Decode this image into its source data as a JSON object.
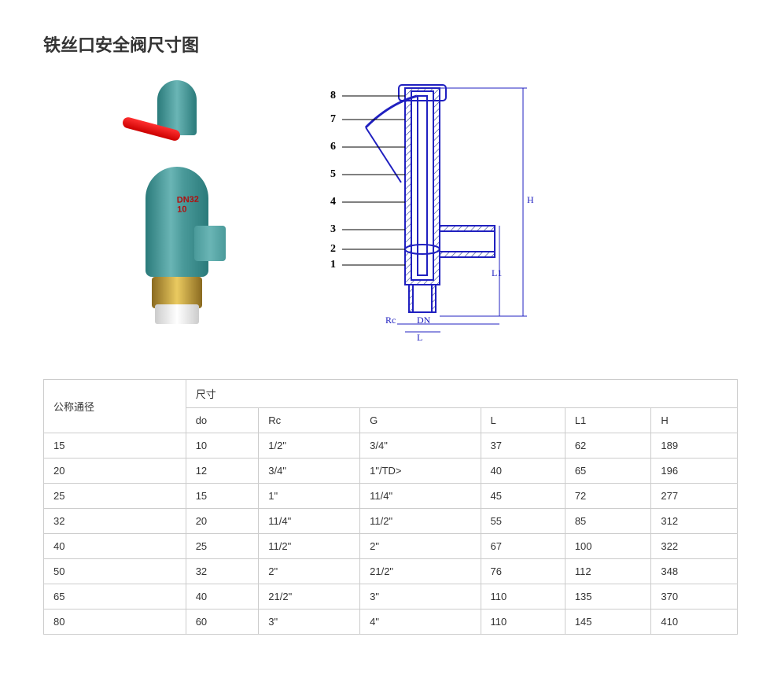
{
  "title": "铁丝口安全阀尺寸图",
  "product_marking": "DN32\n10",
  "callouts": [
    "8",
    "7",
    "6",
    "5",
    "4",
    "3",
    "2",
    "1"
  ],
  "dim_labels": {
    "Rc": "Rc",
    "DN": "DN",
    "L": "L",
    "L1": "L1",
    "H": "H"
  },
  "table": {
    "row_header": "公称通径",
    "group_header": "尺寸",
    "columns": [
      "do",
      "Rc",
      "G",
      "L",
      "L1",
      "H"
    ],
    "rows": [
      {
        "dn": "15",
        "cells": [
          "10",
          "1/2\"",
          "3/4\"",
          "37",
          "62",
          "189"
        ]
      },
      {
        "dn": "20",
        "cells": [
          "12",
          "3/4\"",
          "1\"/TD>",
          "40",
          "65",
          "196"
        ]
      },
      {
        "dn": "25",
        "cells": [
          "15",
          "1\"",
          "11/4\"",
          "45",
          "72",
          "277"
        ]
      },
      {
        "dn": "32",
        "cells": [
          "20",
          "11/4\"",
          "11/2\"",
          "55",
          "85",
          "312"
        ]
      },
      {
        "dn": "40",
        "cells": [
          "25",
          "11/2\"",
          "2\"",
          "67",
          "100",
          "322"
        ]
      },
      {
        "dn": "50",
        "cells": [
          "32",
          "2\"",
          "21/2\"",
          "76",
          "112",
          "348"
        ]
      },
      {
        "dn": "65",
        "cells": [
          "40",
          "21/2\"",
          "3\"",
          "110",
          "135",
          "370"
        ]
      },
      {
        "dn": "80",
        "cells": [
          "60",
          "3\"",
          "4\"",
          "110",
          "145",
          "410"
        ]
      }
    ]
  },
  "colors": {
    "title": "#333333",
    "border": "#cccccc",
    "drawing_stroke": "#2020c0",
    "hatch": "#2a3a90",
    "lever": "#cc0000",
    "valve_teal": "#4a9a9a",
    "brass": "#caa040"
  }
}
